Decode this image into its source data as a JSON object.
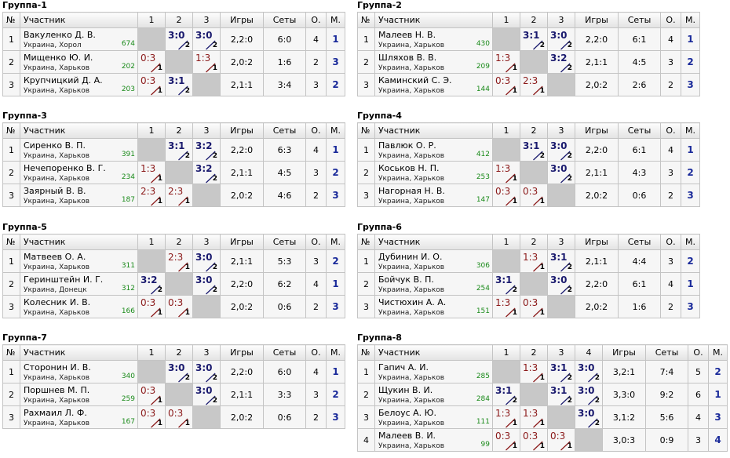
{
  "headers": {
    "no": "№",
    "participant": "Участник",
    "games": "Игры",
    "sets": "Сеты",
    "points": "О.",
    "place": "М."
  },
  "groups": [
    {
      "title": "Группа-1",
      "n": 3,
      "players": [
        {
          "no": "1",
          "name": "Вакуленко Д. В.",
          "loc": "Украина, Хорол",
          "rating": "674",
          "results": [
            null,
            {
              "s": "3:0",
              "p": "2",
              "w": true
            },
            {
              "s": "3:0",
              "p": "2",
              "w": true
            }
          ],
          "games": "2,2:0",
          "sets": "6:0",
          "points": "4",
          "place": "1"
        },
        {
          "no": "2",
          "name": "Мищенко Ю. И.",
          "loc": "Украина, Харьков",
          "rating": "202",
          "results": [
            {
              "s": "0:3",
              "p": "1",
              "w": false
            },
            null,
            {
              "s": "1:3",
              "p": "1",
              "w": false
            }
          ],
          "games": "2,0:2",
          "sets": "1:6",
          "points": "2",
          "place": "3"
        },
        {
          "no": "3",
          "name": "Крупчицкий Д. А.",
          "loc": "Украина, Харьков",
          "rating": "203",
          "results": [
            {
              "s": "0:3",
              "p": "1",
              "w": false
            },
            {
              "s": "3:1",
              "p": "2",
              "w": true
            },
            null
          ],
          "games": "2,1:1",
          "sets": "3:4",
          "points": "3",
          "place": "2"
        }
      ]
    },
    {
      "title": "Группа-2",
      "n": 3,
      "players": [
        {
          "no": "1",
          "name": "Малеев Н. В.",
          "loc": "Украина, Харьков",
          "rating": "430",
          "results": [
            null,
            {
              "s": "3:1",
              "p": "2",
              "w": true
            },
            {
              "s": "3:0",
              "p": "2",
              "w": true
            }
          ],
          "games": "2,2:0",
          "sets": "6:1",
          "points": "4",
          "place": "1"
        },
        {
          "no": "2",
          "name": "Шляхов В. В.",
          "loc": "Украина, Харьков",
          "rating": "209",
          "results": [
            {
              "s": "1:3",
              "p": "1",
              "w": false
            },
            null,
            {
              "s": "3:2",
              "p": "2",
              "w": true
            }
          ],
          "games": "2,1:1",
          "sets": "4:5",
          "points": "3",
          "place": "2"
        },
        {
          "no": "3",
          "name": "Каминский С. Э.",
          "loc": "Украина, Харьков",
          "rating": "144",
          "results": [
            {
              "s": "0:3",
              "p": "1",
              "w": false
            },
            {
              "s": "2:3",
              "p": "1",
              "w": false
            },
            null
          ],
          "games": "2,0:2",
          "sets": "2:6",
          "points": "2",
          "place": "3"
        }
      ]
    },
    {
      "title": "Группа-3",
      "n": 3,
      "players": [
        {
          "no": "1",
          "name": "Сиренко В. П.",
          "loc": "Украина, Харьков",
          "rating": "391",
          "results": [
            null,
            {
              "s": "3:1",
              "p": "2",
              "w": true
            },
            {
              "s": "3:2",
              "p": "2",
              "w": true
            }
          ],
          "games": "2,2:0",
          "sets": "6:3",
          "points": "4",
          "place": "1"
        },
        {
          "no": "2",
          "name": "Нечепоренко В. Г.",
          "loc": "Украина, Харьков",
          "rating": "234",
          "results": [
            {
              "s": "1:3",
              "p": "1",
              "w": false
            },
            null,
            {
              "s": "3:2",
              "p": "2",
              "w": true
            }
          ],
          "games": "2,1:1",
          "sets": "4:5",
          "points": "3",
          "place": "2"
        },
        {
          "no": "3",
          "name": "Заярный В. В.",
          "loc": "Украина, Харьков",
          "rating": "187",
          "results": [
            {
              "s": "2:3",
              "p": "1",
              "w": false
            },
            {
              "s": "2:3",
              "p": "1",
              "w": false
            },
            null
          ],
          "games": "2,0:2",
          "sets": "4:6",
          "points": "2",
          "place": "3"
        }
      ]
    },
    {
      "title": "Группа-4",
      "n": 3,
      "players": [
        {
          "no": "1",
          "name": "Павлюк О. Р.",
          "loc": "Украина, Харьков",
          "rating": "412",
          "results": [
            null,
            {
              "s": "3:1",
              "p": "2",
              "w": true
            },
            {
              "s": "3:0",
              "p": "2",
              "w": true
            }
          ],
          "games": "2,2:0",
          "sets": "6:1",
          "points": "4",
          "place": "1"
        },
        {
          "no": "2",
          "name": "Коськов Н. П.",
          "loc": "Украина, Харьков",
          "rating": "253",
          "results": [
            {
              "s": "1:3",
              "p": "1",
              "w": false
            },
            null,
            {
              "s": "3:0",
              "p": "2",
              "w": true
            }
          ],
          "games": "2,1:1",
          "sets": "4:3",
          "points": "3",
          "place": "2"
        },
        {
          "no": "3",
          "name": "Нагорная Н. В.",
          "loc": "Украина, Харьков",
          "rating": "147",
          "results": [
            {
              "s": "0:3",
              "p": "1",
              "w": false
            },
            {
              "s": "0:3",
              "p": "1",
              "w": false
            },
            null
          ],
          "games": "2,0:2",
          "sets": "0:6",
          "points": "2",
          "place": "3"
        }
      ]
    },
    {
      "title": "Группа-5",
      "n": 3,
      "players": [
        {
          "no": "1",
          "name": "Матвеев О. А.",
          "loc": "Украина, Харьков",
          "rating": "311",
          "results": [
            null,
            {
              "s": "2:3",
              "p": "1",
              "w": false
            },
            {
              "s": "3:0",
              "p": "2",
              "w": true
            }
          ],
          "games": "2,1:1",
          "sets": "5:3",
          "points": "3",
          "place": "2"
        },
        {
          "no": "2",
          "name": "Геринштейн И. Г.",
          "loc": "Украина, Донецк",
          "rating": "312",
          "results": [
            {
              "s": "3:2",
              "p": "2",
              "w": true
            },
            null,
            {
              "s": "3:0",
              "p": "2",
              "w": true
            }
          ],
          "games": "2,2:0",
          "sets": "6:2",
          "points": "4",
          "place": "1"
        },
        {
          "no": "3",
          "name": "Колесник И. В.",
          "loc": "Украина, Харьков",
          "rating": "166",
          "results": [
            {
              "s": "0:3",
              "p": "1",
              "w": false
            },
            {
              "s": "0:3",
              "p": "1",
              "w": false
            },
            null
          ],
          "games": "2,0:2",
          "sets": "0:6",
          "points": "2",
          "place": "3"
        }
      ]
    },
    {
      "title": "Группа-6",
      "n": 3,
      "players": [
        {
          "no": "1",
          "name": "Дубинин И. О.",
          "loc": "Украина, Харьков",
          "rating": "306",
          "results": [
            null,
            {
              "s": "1:3",
              "p": "1",
              "w": false
            },
            {
              "s": "3:1",
              "p": "2",
              "w": true
            }
          ],
          "games": "2,1:1",
          "sets": "4:4",
          "points": "3",
          "place": "2"
        },
        {
          "no": "2",
          "name": "Бойчук В. П.",
          "loc": "Украина, Харьков",
          "rating": "254",
          "results": [
            {
              "s": "3:1",
              "p": "2",
              "w": true
            },
            null,
            {
              "s": "3:0",
              "p": "2",
              "w": true
            }
          ],
          "games": "2,2:0",
          "sets": "6:1",
          "points": "4",
          "place": "1"
        },
        {
          "no": "3",
          "name": "Чистюхин А. А.",
          "loc": "Украина, Харьков",
          "rating": "151",
          "results": [
            {
              "s": "1:3",
              "p": "1",
              "w": false
            },
            {
              "s": "0:3",
              "p": "1",
              "w": false
            },
            null
          ],
          "games": "2,0:2",
          "sets": "1:6",
          "points": "2",
          "place": "3"
        }
      ]
    },
    {
      "title": "Группа-7",
      "n": 3,
      "players": [
        {
          "no": "1",
          "name": "Сторонин И. В.",
          "loc": "Украина, Харьков",
          "rating": "340",
          "results": [
            null,
            {
              "s": "3:0",
              "p": "2",
              "w": true
            },
            {
              "s": "3:0",
              "p": "2",
              "w": true
            }
          ],
          "games": "2,2:0",
          "sets": "6:0",
          "points": "4",
          "place": "1"
        },
        {
          "no": "2",
          "name": "Поршнев М. П.",
          "loc": "Украина, Харьков",
          "rating": "259",
          "results": [
            {
              "s": "0:3",
              "p": "1",
              "w": false
            },
            null,
            {
              "s": "3:0",
              "p": "2",
              "w": true
            }
          ],
          "games": "2,1:1",
          "sets": "3:3",
          "points": "3",
          "place": "2"
        },
        {
          "no": "3",
          "name": "Рахмаил Л. Ф.",
          "loc": "Украина, Харьков",
          "rating": "167",
          "results": [
            {
              "s": "0:3",
              "p": "1",
              "w": false
            },
            {
              "s": "0:3",
              "p": "1",
              "w": false
            },
            null
          ],
          "games": "2,0:2",
          "sets": "0:6",
          "points": "2",
          "place": "3"
        }
      ]
    },
    {
      "title": "Группа-8",
      "n": 4,
      "players": [
        {
          "no": "1",
          "name": "Гапич А. И.",
          "loc": "Украина, Харьков",
          "rating": "285",
          "results": [
            null,
            {
              "s": "1:3",
              "p": "1",
              "w": false
            },
            {
              "s": "3:1",
              "p": "2",
              "w": true
            },
            {
              "s": "3:0",
              "p": "2",
              "w": true
            }
          ],
          "games": "3,2:1",
          "sets": "7:4",
          "points": "5",
          "place": "2"
        },
        {
          "no": "2",
          "name": "Щукин В. И.",
          "loc": "Украина, Харьков",
          "rating": "284",
          "results": [
            {
              "s": "3:1",
              "p": "2",
              "w": true
            },
            null,
            {
              "s": "3:1",
              "p": "2",
              "w": true
            },
            {
              "s": "3:0",
              "p": "2",
              "w": true
            }
          ],
          "games": "3,3:0",
          "sets": "9:2",
          "points": "6",
          "place": "1"
        },
        {
          "no": "3",
          "name": "Белоус А. Ю.",
          "loc": "Украина, Харьков",
          "rating": "111",
          "results": [
            {
              "s": "1:3",
              "p": "1",
              "w": false
            },
            {
              "s": "1:3",
              "p": "1",
              "w": false
            },
            null,
            {
              "s": "3:0",
              "p": "2",
              "w": true
            }
          ],
          "games": "3,1:2",
          "sets": "5:6",
          "points": "4",
          "place": "3"
        },
        {
          "no": "4",
          "name": "Малеев В. И.",
          "loc": "Украина, Харьков",
          "rating": "99",
          "results": [
            {
              "s": "0:3",
              "p": "1",
              "w": false
            },
            {
              "s": "0:3",
              "p": "1",
              "w": false
            },
            {
              "s": "0:3",
              "p": "1",
              "w": false
            },
            null
          ],
          "games": "3,0:3",
          "sets": "0:9",
          "points": "3",
          "place": "4"
        }
      ]
    }
  ]
}
